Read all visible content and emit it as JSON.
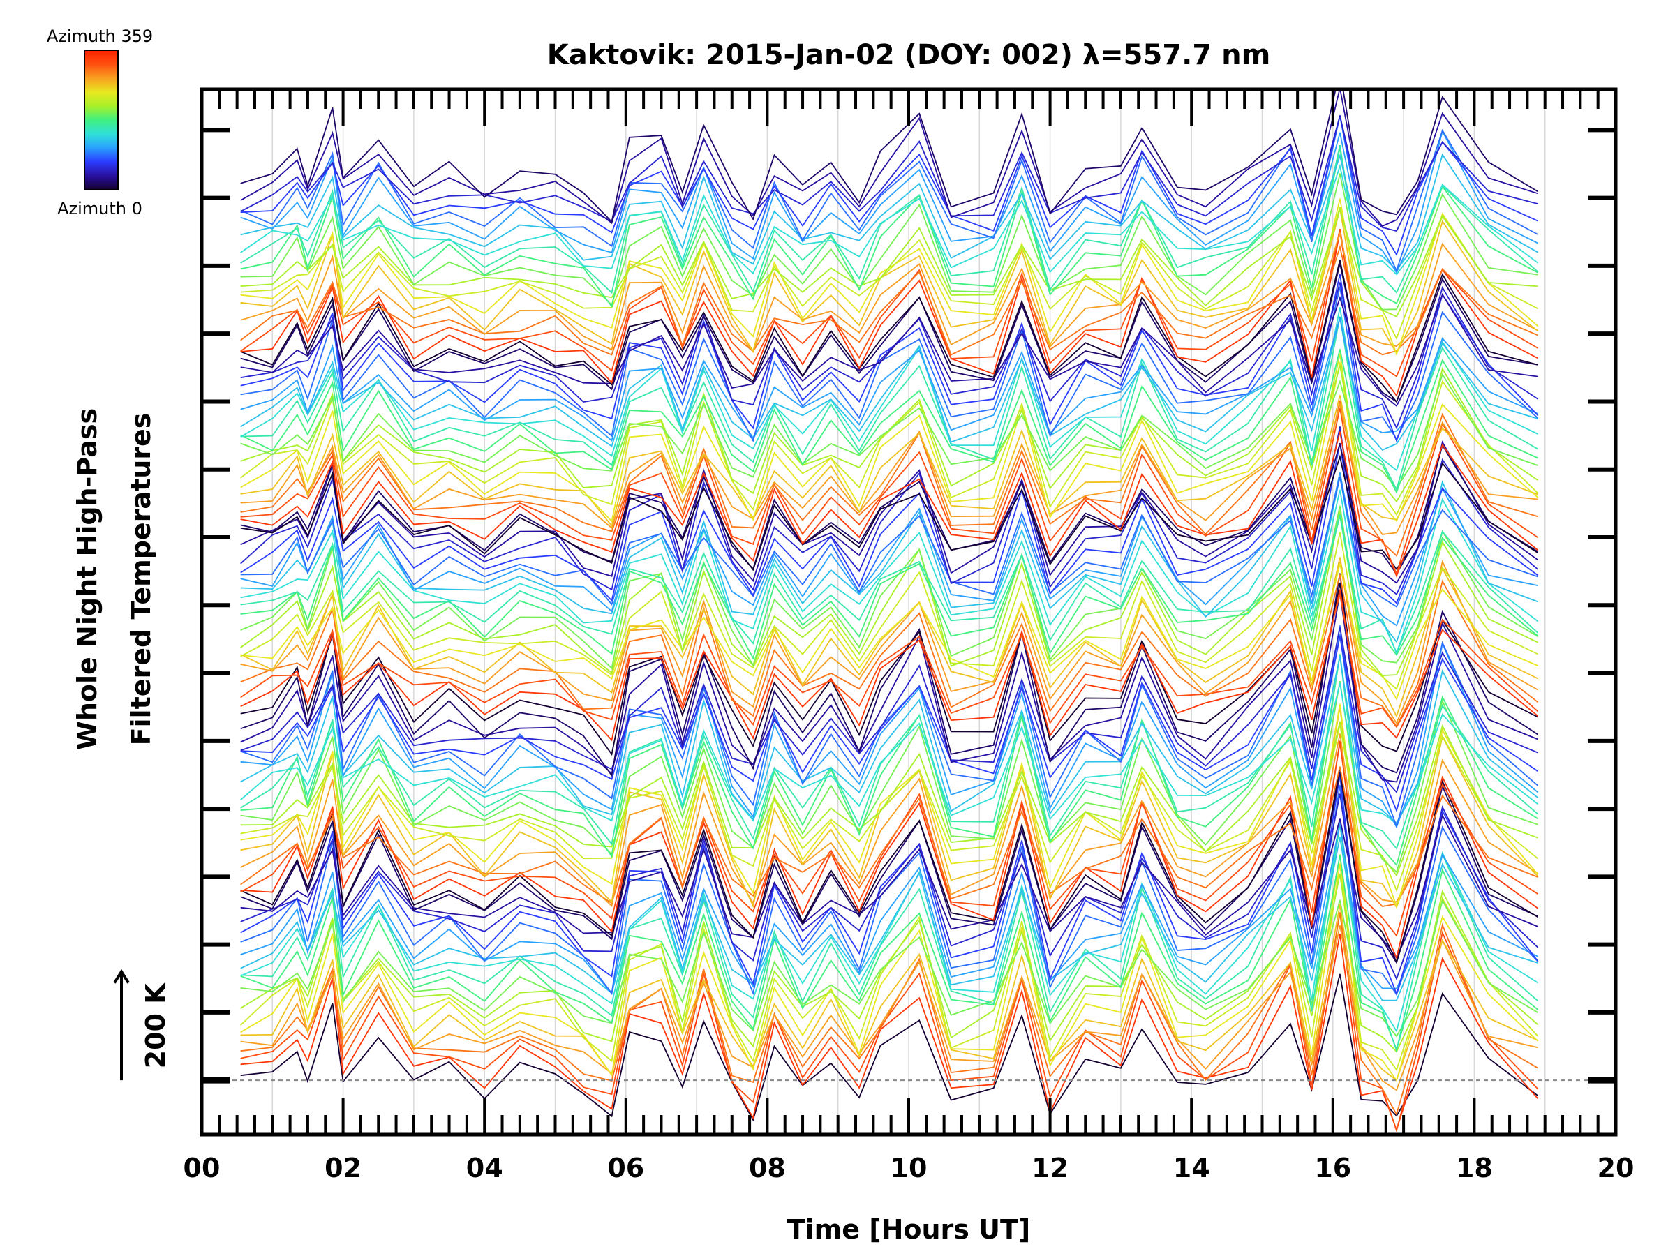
{
  "chart_data": {
    "type": "line",
    "title": "Kaktovik: 2015-Jan-02 (DOY: 002) λ=557.7 nm",
    "xlabel": "Time [Hours UT]",
    "ylabel_line1": "Whole Night High-Pass",
    "ylabel_line2": "Filtered Temperatures",
    "scale_bar_label": "200 K",
    "scale_bar_K": 200,
    "xlim": [
      0,
      20
    ],
    "ylim_K": [
      -100,
      1825
    ],
    "x_ticks": [
      "00",
      "02",
      "04",
      "06",
      "08",
      "10",
      "12",
      "14",
      "16",
      "18",
      "20"
    ],
    "x_major_step": 2,
    "x_minor_step": 0.25,
    "x_grid_step": 1,
    "y_tick_step_K": 125,
    "baseline_K": 0,
    "colorbar": {
      "top_label": "Azimuth 359",
      "bottom_label": "Azimuth 0",
      "min": 0,
      "max": 359
    },
    "colormap": [
      "#140032",
      "#2a10a0",
      "#2a3cff",
      "#2aa0ff",
      "#30e0d8",
      "#40f080",
      "#a8f028",
      "#e8e820",
      "#f8a020",
      "#ff5010",
      "#ff2000"
    ],
    "time_hours": [
      0.55,
      1.0,
      1.35,
      1.5,
      1.85,
      2.0,
      2.5,
      3.0,
      3.5,
      4.0,
      4.5,
      5.0,
      5.4,
      5.8,
      6.05,
      6.5,
      6.8,
      7.1,
      7.5,
      7.8,
      8.1,
      8.5,
      8.9,
      9.3,
      9.6,
      10.15,
      10.6,
      11.2,
      11.6,
      12.0,
      12.5,
      13.0,
      13.3,
      13.8,
      14.2,
      14.8,
      15.4,
      15.7,
      16.1,
      16.4,
      16.7,
      16.9,
      17.2,
      17.55,
      18.2,
      18.9
    ],
    "common_profile_K": [
      0,
      15,
      70,
      20,
      160,
      10,
      110,
      0,
      25,
      -15,
      30,
      10,
      -30,
      -70,
      90,
      110,
      -10,
      140,
      -20,
      -70,
      70,
      -20,
      50,
      -30,
      60,
      160,
      -40,
      -30,
      150,
      -60,
      40,
      20,
      140,
      0,
      -30,
      30,
      150,
      -40,
      260,
      -30,
      -60,
      -100,
      20,
      210,
      40,
      -30
    ],
    "series_groups": [
      {
        "zenith_group": 1,
        "offset_K": 0,
        "amplitude": 1.0
      },
      {
        "zenith_group": 2,
        "offset_K": 330,
        "amplitude": 0.95
      },
      {
        "zenith_group": 3,
        "offset_K": 680,
        "amplitude": 0.8
      },
      {
        "zenith_group": 4,
        "offset_K": 1000,
        "amplitude": 0.75
      },
      {
        "zenith_group": 5,
        "offset_K": 1330,
        "amplitude": 0.7
      }
    ],
    "azimuths": [
      0,
      342,
      324,
      306,
      288,
      270,
      252,
      234,
      216,
      198,
      180,
      162,
      144,
      126,
      108,
      90,
      72,
      54,
      36,
      18
    ],
    "line_spacing_K": 17
  }
}
